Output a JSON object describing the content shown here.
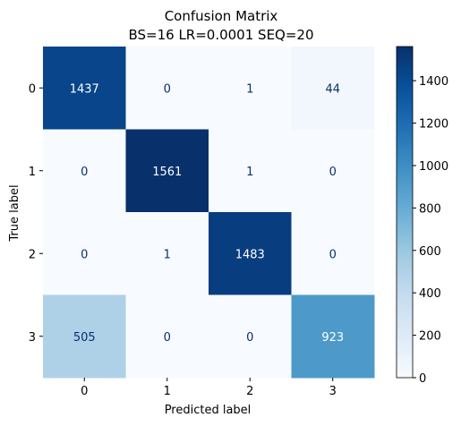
{
  "chart_data": {
    "type": "heatmap",
    "title": "Confusion Matrix",
    "subtitle": "BS=16 LR=0.0001 SEQ=20",
    "xlabel": "Predicted label",
    "ylabel": "True label",
    "x_categories": [
      "0",
      "1",
      "2",
      "3"
    ],
    "y_categories": [
      "0",
      "1",
      "2",
      "3"
    ],
    "matrix": [
      [
        1437,
        0,
        1,
        44
      ],
      [
        0,
        1561,
        1,
        0
      ],
      [
        0,
        1,
        1483,
        0
      ],
      [
        505,
        0,
        0,
        923
      ]
    ],
    "colormap": "Blues",
    "colorbar": {
      "range": [
        0,
        1561
      ],
      "ticks": [
        0,
        200,
        400,
        600,
        800,
        1000,
        1200,
        1400
      ]
    },
    "grid": false
  }
}
